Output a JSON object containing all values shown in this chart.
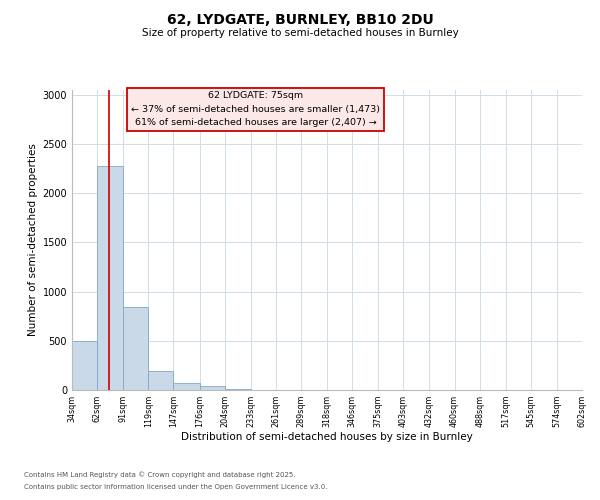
{
  "title": "62, LYDGATE, BURNLEY, BB10 2DU",
  "subtitle": "Size of property relative to semi-detached houses in Burnley",
  "xlabel": "Distribution of semi-detached houses by size in Burnley",
  "ylabel": "Number of semi-detached properties",
  "bin_edges": [
    34,
    62,
    91,
    119,
    147,
    176,
    204,
    233,
    261,
    289,
    318,
    346,
    375,
    403,
    432,
    460,
    488,
    517,
    545,
    574,
    602
  ],
  "bar_heights": [
    500,
    2280,
    840,
    190,
    75,
    40,
    15,
    5,
    0,
    0,
    0,
    0,
    0,
    0,
    0,
    0,
    0,
    0,
    0,
    0
  ],
  "bar_color": "#c9d9e8",
  "bar_edgecolor": "#7faac8",
  "vline_x": 75,
  "vline_color": "#cc0000",
  "ylim": [
    0,
    3050
  ],
  "yticks": [
    0,
    500,
    1000,
    1500,
    2000,
    2500,
    3000
  ],
  "annotation_box_title": "62 LYDGATE: 75sqm",
  "annotation_line1": "← 37% of semi-detached houses are smaller (1,473)",
  "annotation_line2": "61% of semi-detached houses are larger (2,407) →",
  "annotation_box_facecolor": "#fde8e8",
  "annotation_box_edgecolor": "#cc0000",
  "footer_line1": "Contains HM Land Registry data © Crown copyright and database right 2025.",
  "footer_line2": "Contains public sector information licensed under the Open Government Licence v3.0.",
  "background_color": "#ffffff",
  "grid_color": "#d0dde8",
  "tick_labels": [
    "34sqm",
    "62sqm",
    "91sqm",
    "119sqm",
    "147sqm",
    "176sqm",
    "204sqm",
    "233sqm",
    "261sqm",
    "289sqm",
    "318sqm",
    "346sqm",
    "375sqm",
    "403sqm",
    "432sqm",
    "460sqm",
    "488sqm",
    "517sqm",
    "545sqm",
    "574sqm",
    "602sqm"
  ]
}
